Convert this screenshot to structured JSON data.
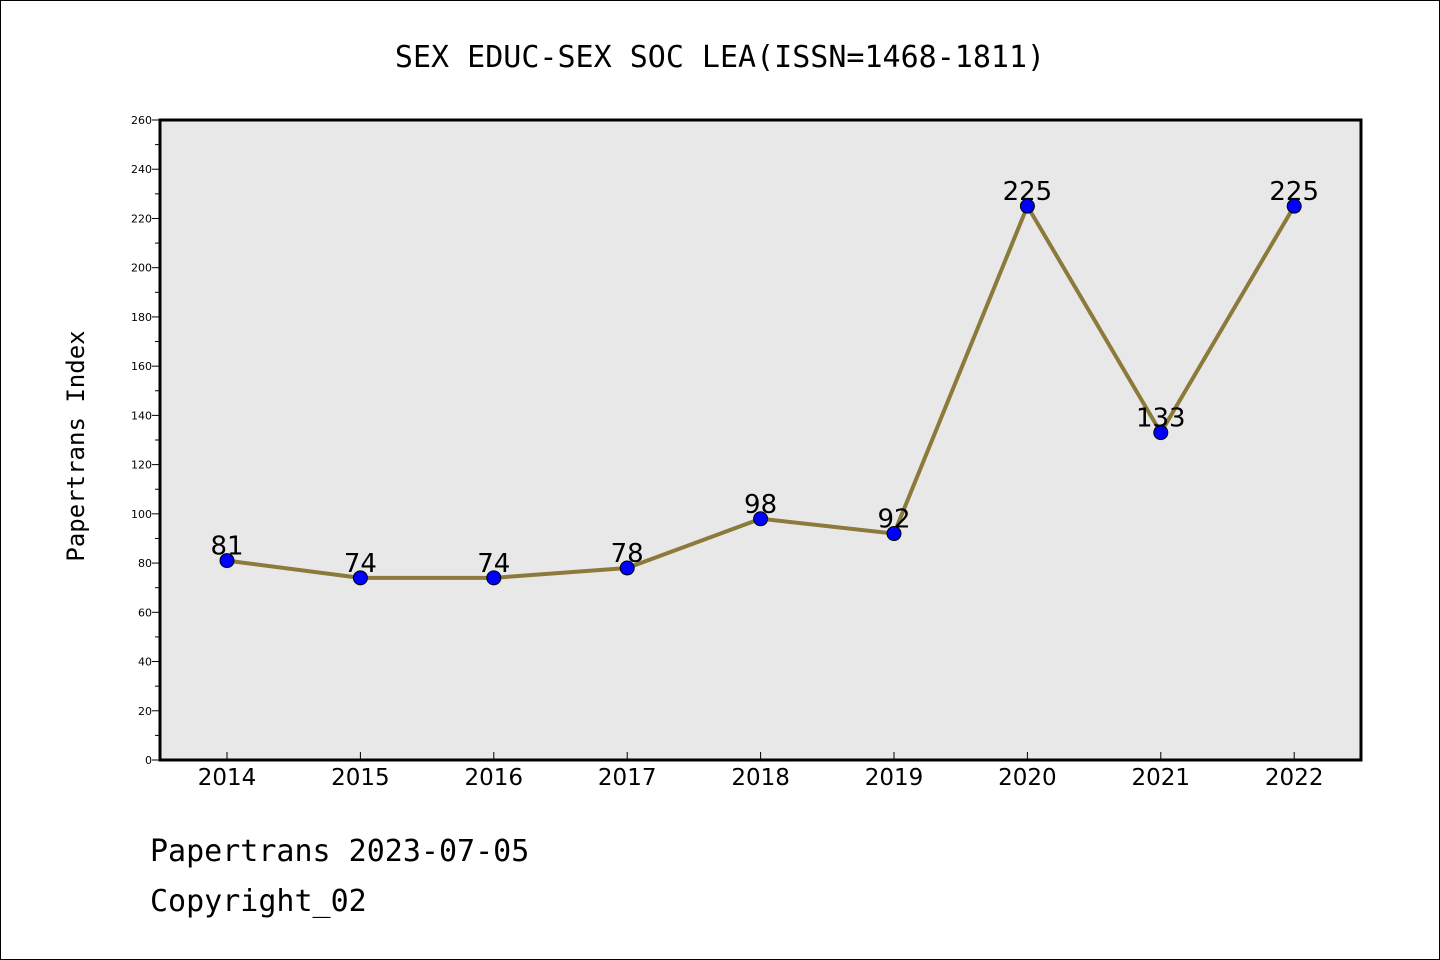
{
  "chart_data": {
    "type": "line",
    "title": "SEX EDUC-SEX SOC LEA(ISSN=1468-1811)",
    "xlabel": "",
    "ylabel": "Papertrans Index",
    "categories": [
      "2014",
      "2015",
      "2016",
      "2017",
      "2018",
      "2019",
      "2020",
      "2021",
      "2022"
    ],
    "values": [
      81,
      74,
      74,
      78,
      98,
      92,
      225,
      133,
      225
    ],
    "ylim": [
      0,
      260
    ],
    "yticks": [
      0,
      20,
      40,
      60,
      80,
      100,
      120,
      140,
      160,
      180,
      200,
      220,
      240,
      260
    ],
    "grid": false,
    "legend": "none",
    "line_color": "#8b7a3a",
    "marker_color": "#0000ff",
    "plot_background": "#e8e8e8"
  },
  "footer": {
    "line1": "Papertrans 2023-07-05",
    "line2": "Copyright_02"
  }
}
